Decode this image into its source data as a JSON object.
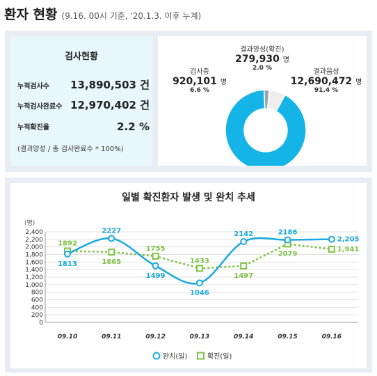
{
  "header": {
    "title": "환자 현황",
    "subtitle": "(9.16. 00시 기준, '20.1.3. 이후 누계)"
  },
  "stats": {
    "title": "검사현황",
    "rows": [
      {
        "label": "누적검사수",
        "value": "13,890,503 건"
      },
      {
        "label": "누적검사완료수",
        "value": "12,970,402 건"
      },
      {
        "label": "누적확진율",
        "value": "2.2 %"
      }
    ],
    "note": "(결과양성 / 총 검사완료수 * 100%)"
  },
  "pie": {
    "slices": [
      {
        "name": "결과음성",
        "value": 12690472,
        "number": "12,690,472",
        "unit": "명",
        "percent": "91.4 %",
        "color": "#14b4e6"
      },
      {
        "name": "검사중",
        "value": 920101,
        "number": "920,101",
        "unit": "명",
        "percent": "6.6 %",
        "color": "#eeeeee"
      },
      {
        "name": "결과양성(확진)",
        "value": 279930,
        "number": "279,930",
        "unit": "명",
        "percent": "2.0 %",
        "color": "#9aa2aa"
      }
    ]
  },
  "chart_data": {
    "type": "line",
    "title": "일별 확진환자 발생 및 완치 추세",
    "ylabel": "(명)",
    "ylim": [
      0,
      2400
    ],
    "yticks": [
      "0",
      "200",
      "400",
      "600",
      "800",
      "1,000",
      "1,200",
      "1,400",
      "1,600",
      "1,800",
      "2,000",
      "2,200",
      "2,400"
    ],
    "grid": true,
    "legend_position": "bottom",
    "categories": [
      "09.10",
      "09.11",
      "09.12",
      "09.13",
      "09.14",
      "09.15",
      "09.16"
    ],
    "series": [
      {
        "name": "완치(일)",
        "values": [
          1813,
          2227,
          1499,
          1046,
          2142,
          2186,
          2205
        ],
        "labels": [
          "1813",
          "2227",
          "1499",
          "1046",
          "2142",
          "2186",
          "2,205"
        ],
        "color": "#1aa9e0",
        "style": "solid",
        "marker": "circle"
      },
      {
        "name": "확진(일)",
        "values": [
          1892,
          1865,
          1755,
          1433,
          1497,
          2079,
          1941
        ],
        "labels": [
          "1892",
          "1865",
          "1755",
          "1433",
          "1497",
          "2079",
          "1,941"
        ],
        "color": "#7cc242",
        "style": "dotted",
        "marker": "square"
      }
    ]
  }
}
